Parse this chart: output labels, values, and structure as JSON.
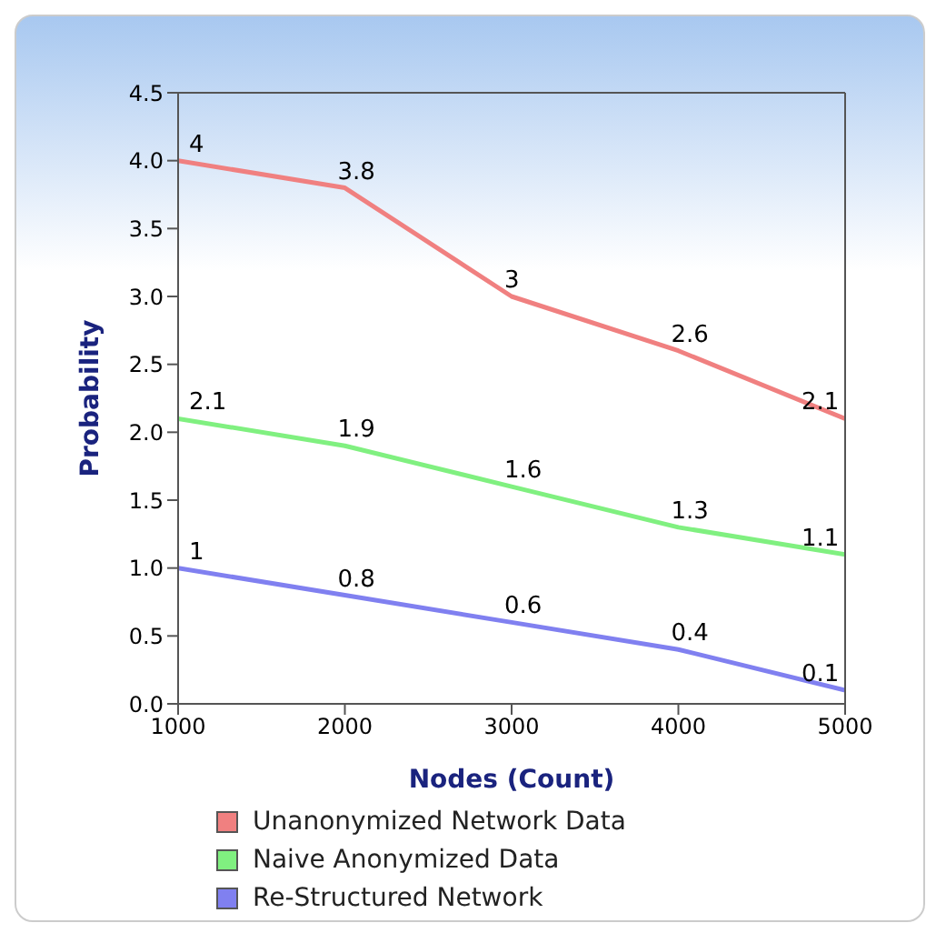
{
  "chart_data": {
    "type": "line",
    "xlabel": "Nodes (Count)",
    "ylabel": "Probability",
    "x": [
      1000,
      2000,
      3000,
      4000,
      5000
    ],
    "series": [
      {
        "name": "Unanonymized Network Data",
        "color": "#f08080",
        "values": [
          4,
          3.8,
          3,
          2.6,
          2.1
        ]
      },
      {
        "name": "Naive Anonymized Data",
        "color": "#80f080",
        "values": [
          2.1,
          1.9,
          1.6,
          1.3,
          1.1
        ]
      },
      {
        "name": "Re-Structured Network",
        "color": "#8080f0",
        "values": [
          1,
          0.8,
          0.6,
          0.4,
          0.1
        ]
      }
    ],
    "xlim": [
      1000,
      5000
    ],
    "xticks": [
      1000,
      2000,
      3000,
      4000,
      5000
    ],
    "ylim": [
      0,
      4.5
    ],
    "yticks": [
      {
        "value": 0,
        "label": "0.0"
      },
      0.5,
      {
        "value": 1,
        "label": "1.0"
      },
      1.5,
      {
        "value": 2,
        "label": "2.0"
      },
      2.5,
      {
        "value": 3,
        "label": "3.0"
      },
      3.5,
      {
        "value": 4,
        "label": "4.0"
      },
      4.5
    ],
    "data_labels": true,
    "grid": false,
    "legend": "bottom left",
    "marker": "none",
    "line_style": "solid"
  }
}
